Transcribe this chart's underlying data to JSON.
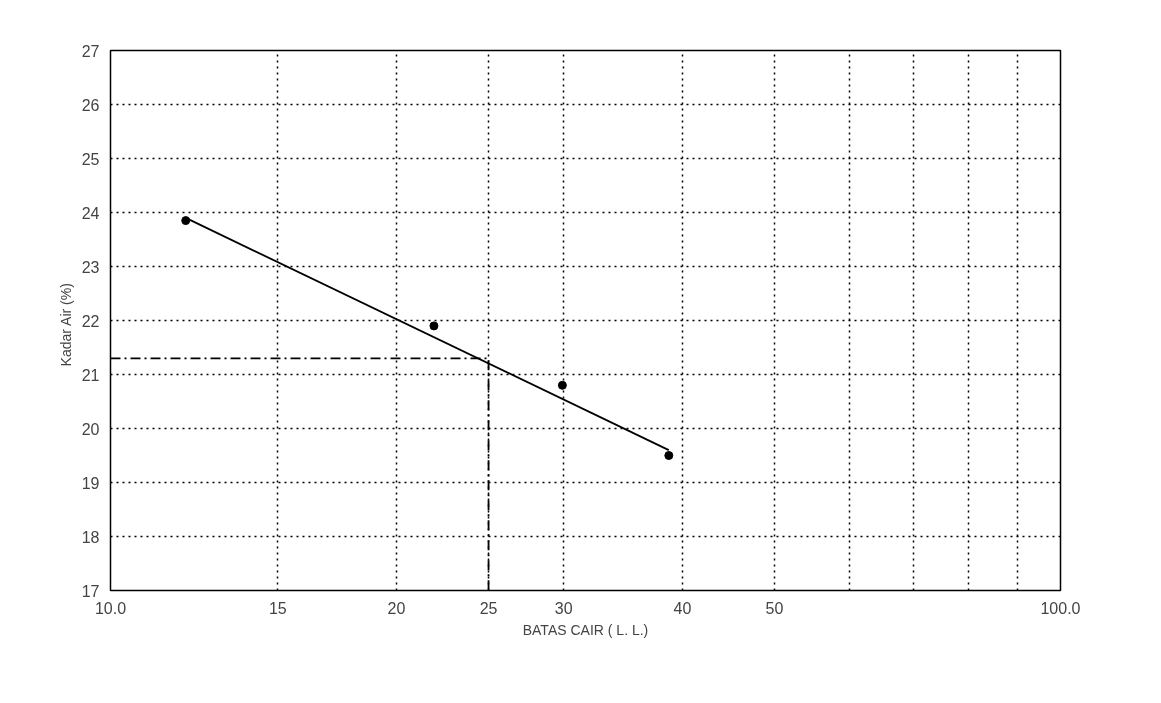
{
  "chart_data": {
    "type": "scatter",
    "xlabel": "BATAS CAIR ( L. L.)",
    "ylabel": "Kadar Air   (%)",
    "log": "x",
    "xlim": [
      10,
      100
    ],
    "ylim": [
      17,
      27
    ],
    "xticks": [
      {
        "value": 10,
        "label": "10.0"
      },
      15,
      20,
      25,
      30,
      40,
      50,
      {
        "value": 60,
        "label": null
      },
      {
        "value": 70,
        "label": null
      },
      {
        "value": 80,
        "label": null
      },
      {
        "value": 90,
        "label": null
      },
      {
        "value": 100,
        "label": "100.0"
      }
    ],
    "yticks": [
      17,
      18,
      19,
      20,
      21,
      22,
      23,
      24,
      25,
      26,
      27
    ],
    "grid": true,
    "series": [
      {
        "marker": "circle",
        "color": "#000000",
        "x": [
          12,
          21.9,
          29.9,
          38.7
        ],
        "values": [
          23.85,
          21.9,
          20.8,
          19.5
        ]
      },
      {
        "type": "line",
        "line_style": "solid",
        "color": "#000000",
        "x": [
          12,
          38.7
        ],
        "values": [
          23.9,
          19.6
        ]
      },
      {
        "type": "line",
        "line_style": "dashed",
        "color": "#000000",
        "x": [
          10,
          25,
          25
        ],
        "values": [
          21.3,
          21.3,
          17
        ]
      }
    ]
  }
}
